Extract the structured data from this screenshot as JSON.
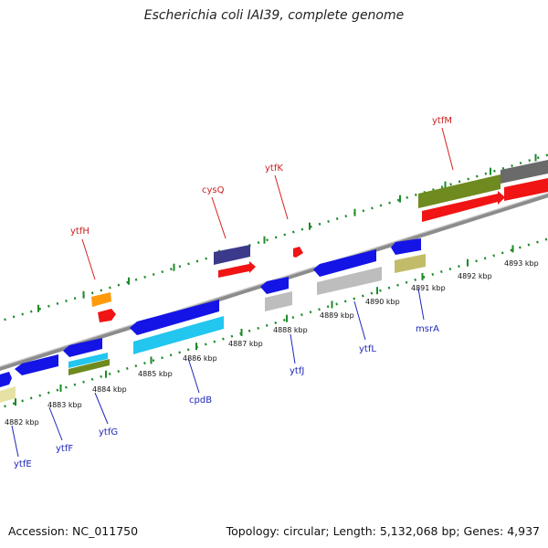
{
  "title": "Escherichia coli IAI39, complete genome",
  "footer": {
    "accession": "Accession: NC_011750",
    "stats": "Topology: circular; Length: 5,132,068 bp; Genes: 4,937"
  },
  "scale_labels": [
    "4882 kbp",
    "4883 kbp",
    "4884 kbp",
    "4885 kbp",
    "4886 kbp",
    "4887 kbp",
    "4888 kbp",
    "4889 kbp",
    "4890 kbp",
    "4891 kbp",
    "4892 kbp",
    "4893 kbp"
  ],
  "genes_top": [
    {
      "name": "ytfH",
      "color": "#d42020"
    },
    {
      "name": "cysQ",
      "color": "#d42020"
    },
    {
      "name": "ytfK",
      "color": "#d42020"
    },
    {
      "name": "ytfM",
      "color": "#d42020"
    }
  ],
  "genes_bottom": [
    {
      "name": "ytfE",
      "color": "#1f28b8"
    },
    {
      "name": "ytfF",
      "color": "#1f28b8"
    },
    {
      "name": "ytfG",
      "color": "#1f28b8"
    },
    {
      "name": "cpdB",
      "color": "#1f28b8"
    },
    {
      "name": "ytfJ",
      "color": "#1f28b8"
    },
    {
      "name": "ytfL",
      "color": "#1f28b8"
    },
    {
      "name": "msrA",
      "color": "#1f28b8"
    }
  ],
  "feature_colors": {
    "blue": "#1414e6",
    "red": "#f01414",
    "olive": "#6f8a1e",
    "cyan": "#22c6ee",
    "orange": "#ff9a0a",
    "gray": "#bdbdbd",
    "purple": "#3b3a8a",
    "khaki": "#c2bc6a",
    "pale_yellow": "#e6e2a6",
    "dark_gray": "#6a6a6a"
  }
}
